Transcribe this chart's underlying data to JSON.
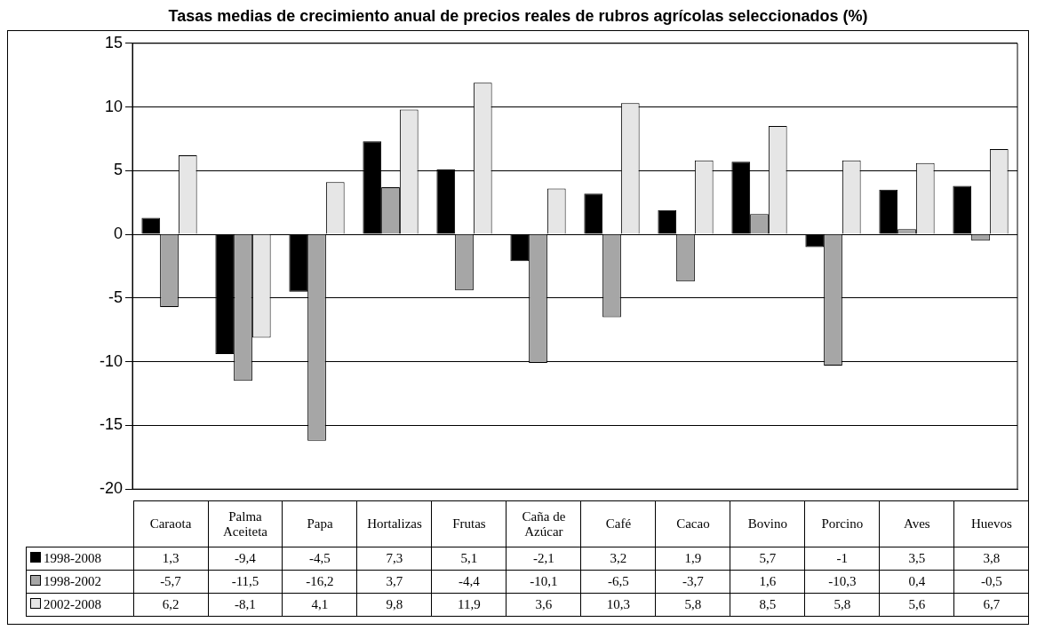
{
  "chart_data": {
    "type": "bar",
    "title": "Tasas medias de crecimiento anual de precios reales de rubros agrícolas seleccionados (%)",
    "categories": [
      "Caraota",
      "Palma Aceiteta",
      "Papa",
      "Hortalizas",
      "Frutas",
      "Caña de Azúcar",
      "Café",
      "Cacao",
      "Bovino",
      "Porcino",
      "Aves",
      "Huevos"
    ],
    "series": [
      {
        "name": "1998-2008",
        "color": "#000000",
        "values": [
          1.3,
          -9.4,
          -4.5,
          7.3,
          5.1,
          -2.1,
          3.2,
          1.9,
          5.7,
          -1,
          3.5,
          3.8
        ],
        "value_labels": [
          "1,3",
          "-9,4",
          "-4,5",
          "7,3",
          "5,1",
          "-2,1",
          "3,2",
          "1,9",
          "5,7",
          "-1",
          "3,5",
          "3,8"
        ]
      },
      {
        "name": "1998-2002",
        "color": "#a6a6a6",
        "values": [
          -5.7,
          -11.5,
          -16.2,
          3.7,
          -4.4,
          -10.1,
          -6.5,
          -3.7,
          1.6,
          -10.3,
          0.4,
          -0.5
        ],
        "value_labels": [
          "-5,7",
          "-11,5",
          "-16,2",
          "3,7",
          "-4,4",
          "-10,1",
          "-6,5",
          "-3,7",
          "1,6",
          "-10,3",
          "0,4",
          "-0,5"
        ]
      },
      {
        "name": "2002-2008",
        "color": "#e6e6e6",
        "values": [
          6.2,
          -8.1,
          4.1,
          9.8,
          11.9,
          3.6,
          10.3,
          5.8,
          8.5,
          5.8,
          5.6,
          6.7
        ],
        "value_labels": [
          "6,2",
          "-8,1",
          "4,1",
          "9,8",
          "11,9",
          "3,6",
          "10,3",
          "5,8",
          "8,5",
          "5,8",
          "5,6",
          "6,7"
        ]
      }
    ],
    "ylim": [
      -20,
      15
    ],
    "yticks": [
      -20,
      -15,
      -10,
      -5,
      0,
      5,
      10,
      15
    ],
    "grid": "y",
    "legend": "bottom"
  }
}
